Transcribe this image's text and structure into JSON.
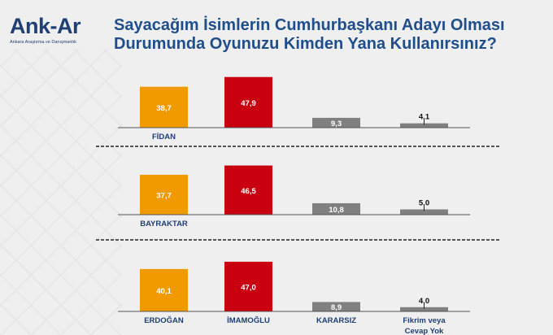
{
  "logo": {
    "name": "Ank-Ar",
    "subtitle": "Ankara Araştırma ve Danışmanlık"
  },
  "title_line1": "Sayacağım İsimlerin Cumhurbaşkanı Adayı Olması",
  "title_line2": "Durumunda Oyunuzu Kimden Yana Kullanırsınız?",
  "chart_data": [
    {
      "type": "bar",
      "series_labels": [
        "FİDAN",
        "",
        "",
        ""
      ],
      "values": [
        38.7,
        47.9,
        9.3,
        4.1
      ],
      "value_labels": [
        "38,7",
        "47,9",
        "9,3",
        "4,1"
      ],
      "colors": [
        "#f09a00",
        "#c8000f",
        "#808080",
        "#808080"
      ]
    },
    {
      "type": "bar",
      "series_labels": [
        "BAYRAKTAR",
        "",
        "",
        ""
      ],
      "values": [
        37.7,
        46.5,
        10.8,
        5.0
      ],
      "value_labels": [
        "37,7",
        "46,5",
        "10,8",
        "5,0"
      ],
      "colors": [
        "#f09a00",
        "#c8000f",
        "#808080",
        "#808080"
      ]
    },
    {
      "type": "bar",
      "series_labels": [
        "ERDOĞAN",
        "İMAMOĞLU",
        "KARARSIZ",
        "Fikrim veya|Cevap Yok"
      ],
      "values": [
        40.1,
        47.0,
        8.9,
        4.0
      ],
      "value_labels": [
        "40,1",
        "47,0",
        "8,9",
        "4,0"
      ],
      "colors": [
        "#f09a00",
        "#c8000f",
        "#808080",
        "#808080"
      ]
    }
  ]
}
